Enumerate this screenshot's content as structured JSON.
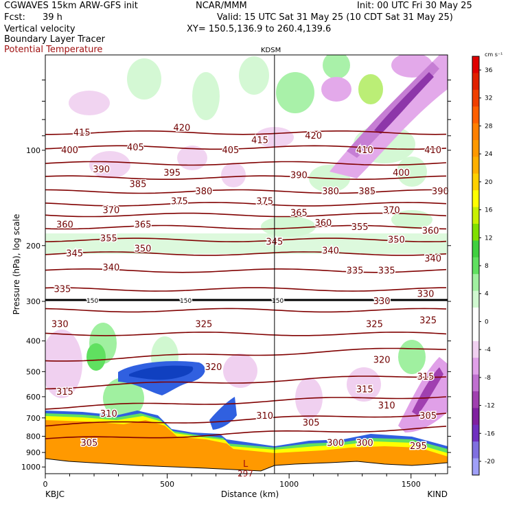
{
  "header": {
    "model": "CGWAVES 15km ARW-GFS init",
    "fcst_label": "Fcst:",
    "fcst_value": "39 h",
    "field1": "Vertical velocity",
    "field2": "Boundary Layer Tracer",
    "field3": "Potential Temperature",
    "center": "NCAR/MMM",
    "init": "Init: 00 UTC Fri 30 May 25",
    "valid": "Valid: 15 UTC Sat 31 May 25 (10 CDT Sat 31 May 25)",
    "xy": "XY= 150.5,136.9 to 260.4,139.6",
    "marker_label": "KDSM"
  },
  "colorbar": {
    "unit": "cm s⁻¹",
    "levels": [
      "36",
      "32",
      "28",
      "24",
      "20",
      "16",
      "12",
      "8",
      "4",
      "0",
      "-4",
      "-8",
      "-12",
      "-16",
      "-20"
    ],
    "colors": [
      "#e00000",
      "#e02000",
      "#f04000",
      "#ff6000",
      "#ff8000",
      "#ff9900",
      "#ffb000",
      "#ffd000",
      "#ffff00",
      "#c8f000",
      "#80e000",
      "#40d040",
      "#60e060",
      "#a0f0a0",
      "#d0f8d0",
      "#ffffff",
      "#ffffff",
      "#f0d0f0",
      "#e0a0e8",
      "#c070d0",
      "#a040b0",
      "#8020a0",
      "#7030c0",
      "#8070e0",
      "#a0a0f8"
    ]
  },
  "chart_data": {
    "type": "cross-section",
    "title": "Vertical velocity / Boundary Layer Tracer / Potential Temperature",
    "xlabel": "Distance (km)",
    "ylabel": "Pressure (hPa), log scale",
    "x_ticks": [
      "0",
      "500",
      "1000",
      "1500"
    ],
    "y_ticks": [
      "100",
      "200",
      "300",
      "400",
      "500",
      "600",
      "700",
      "800",
      "900",
      "1000"
    ],
    "left_station": "KBJC",
    "right_station": "KIND",
    "marker_distance_km": 940,
    "theta_labels": [
      {
        "text": "415",
        "x": 150,
        "p": 88
      },
      {
        "text": "420",
        "x": 560,
        "p": 85
      },
      {
        "text": "415",
        "x": 880,
        "p": 93
      },
      {
        "text": "420",
        "x": 1100,
        "p": 90
      },
      {
        "text": "400",
        "x": 100,
        "p": 100
      },
      {
        "text": "405",
        "x": 370,
        "p": 98
      },
      {
        "text": "405",
        "x": 760,
        "p": 100
      },
      {
        "text": "410",
        "x": 1310,
        "p": 100
      },
      {
        "text": "410",
        "x": 1590,
        "p": 100
      },
      {
        "text": "390",
        "x": 230,
        "p": 115
      },
      {
        "text": "395",
        "x": 520,
        "p": 118
      },
      {
        "text": "385",
        "x": 380,
        "p": 128
      },
      {
        "text": "390",
        "x": 1040,
        "p": 120
      },
      {
        "text": "400",
        "x": 1460,
        "p": 118
      },
      {
        "text": "390",
        "x": 1620,
        "p": 135
      },
      {
        "text": "380",
        "x": 650,
        "p": 135
      },
      {
        "text": "375",
        "x": 550,
        "p": 145
      },
      {
        "text": "375",
        "x": 900,
        "p": 145
      },
      {
        "text": "380",
        "x": 1170,
        "p": 135
      },
      {
        "text": "385",
        "x": 1320,
        "p": 135
      },
      {
        "text": "370",
        "x": 270,
        "p": 155
      },
      {
        "text": "365",
        "x": 1040,
        "p": 158
      },
      {
        "text": "370",
        "x": 1420,
        "p": 155
      },
      {
        "text": "360",
        "x": 80,
        "p": 172
      },
      {
        "text": "365",
        "x": 400,
        "p": 172
      },
      {
        "text": "360",
        "x": 1140,
        "p": 170
      },
      {
        "text": "355",
        "x": 1290,
        "p": 175
      },
      {
        "text": "360",
        "x": 1580,
        "p": 180
      },
      {
        "text": "355",
        "x": 260,
        "p": 190
      },
      {
        "text": "345",
        "x": 940,
        "p": 195
      },
      {
        "text": "350",
        "x": 1440,
        "p": 192
      },
      {
        "text": "345",
        "x": 120,
        "p": 212
      },
      {
        "text": "350",
        "x": 400,
        "p": 205
      },
      {
        "text": "340",
        "x": 1170,
        "p": 208
      },
      {
        "text": "340",
        "x": 1590,
        "p": 220
      },
      {
        "text": "340",
        "x": 270,
        "p": 235
      },
      {
        "text": "335",
        "x": 1270,
        "p": 240
      },
      {
        "text": "335",
        "x": 1400,
        "p": 240
      },
      {
        "text": "335",
        "x": 70,
        "p": 275
      },
      {
        "text": "330",
        "x": 1380,
        "p": 300
      },
      {
        "text": "330",
        "x": 1560,
        "p": 285
      },
      {
        "text": "330",
        "x": 60,
        "p": 355
      },
      {
        "text": "325",
        "x": 650,
        "p": 355
      },
      {
        "text": "325",
        "x": 1350,
        "p": 355
      },
      {
        "text": "325",
        "x": 1570,
        "p": 345
      },
      {
        "text": "320",
        "x": 690,
        "p": 485
      },
      {
        "text": "320",
        "x": 1380,
        "p": 460
      },
      {
        "text": "315",
        "x": 80,
        "p": 580
      },
      {
        "text": "315",
        "x": 1310,
        "p": 570
      },
      {
        "text": "315",
        "x": 1560,
        "p": 520
      },
      {
        "text": "310",
        "x": 260,
        "p": 680
      },
      {
        "text": "310",
        "x": 900,
        "p": 690
      },
      {
        "text": "310",
        "x": 1400,
        "p": 640
      },
      {
        "text": "305",
        "x": 1090,
        "p": 725
      },
      {
        "text": "305",
        "x": 1570,
        "p": 690
      },
      {
        "text": "305",
        "x": 180,
        "p": 840
      },
      {
        "text": "300",
        "x": 1190,
        "p": 840
      },
      {
        "text": "300",
        "x": 1310,
        "p": 840
      },
      {
        "text": "295",
        "x": 1530,
        "p": 860
      }
    ],
    "pressure_line_labels": [
      "150",
      "150",
      "150"
    ],
    "low_label": "L",
    "low_value": "297",
    "theta_lines_p": [
      88,
      98,
      110,
      122,
      135,
      148,
      160,
      175,
      192,
      212,
      240,
      275,
      320,
      380,
      460,
      560,
      650,
      740,
      820
    ]
  }
}
